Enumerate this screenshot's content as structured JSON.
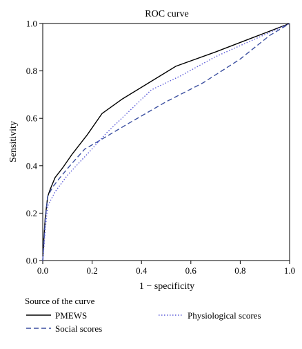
{
  "chart_data": {
    "type": "line",
    "title": "ROC curve",
    "xlabel": "1 − specificity",
    "ylabel": "Sensitivity",
    "xlim": [
      0.0,
      1.0
    ],
    "ylim": [
      0.0,
      1.0
    ],
    "x_ticks": [
      "0.0",
      "0.2",
      "0.4",
      "0.6",
      "0.8",
      "1.0"
    ],
    "y_ticks": [
      "0.0",
      "0.2",
      "0.4",
      "0.6",
      "0.8",
      "1.0"
    ],
    "grid": false,
    "legend_title": "Source of the curve",
    "legend_position": "bottom",
    "series": [
      {
        "name": "PMEWS",
        "color": "#000000",
        "dash": "solid",
        "x": [
          0.0,
          0.005,
          0.01,
          0.02,
          0.03,
          0.05,
          0.08,
          0.12,
          0.18,
          0.24,
          0.32,
          0.43,
          0.54,
          0.7,
          0.85,
          1.0
        ],
        "y": [
          0.0,
          0.1,
          0.18,
          0.27,
          0.3,
          0.35,
          0.39,
          0.45,
          0.53,
          0.62,
          0.68,
          0.75,
          0.82,
          0.88,
          0.94,
          1.0
        ]
      },
      {
        "name": "Social scores",
        "color": "#3b4fa0",
        "dash": "dashed",
        "x": [
          0.0,
          0.005,
          0.01,
          0.02,
          0.04,
          0.07,
          0.11,
          0.17,
          0.22,
          0.35,
          0.5,
          0.65,
          0.8,
          0.92,
          1.0
        ],
        "y": [
          0.0,
          0.08,
          0.17,
          0.27,
          0.31,
          0.35,
          0.4,
          0.47,
          0.5,
          0.58,
          0.67,
          0.75,
          0.85,
          0.95,
          1.0
        ]
      },
      {
        "name": "Physiological scores",
        "color": "#5a5ad8",
        "dash": "dotted",
        "x": [
          0.0,
          0.005,
          0.01,
          0.02,
          0.05,
          0.1,
          0.19,
          0.26,
          0.34,
          0.44,
          0.56,
          0.7,
          0.85,
          1.0
        ],
        "y": [
          0.0,
          0.06,
          0.13,
          0.23,
          0.29,
          0.36,
          0.46,
          0.54,
          0.62,
          0.72,
          0.78,
          0.86,
          0.93,
          1.0
        ]
      }
    ]
  }
}
